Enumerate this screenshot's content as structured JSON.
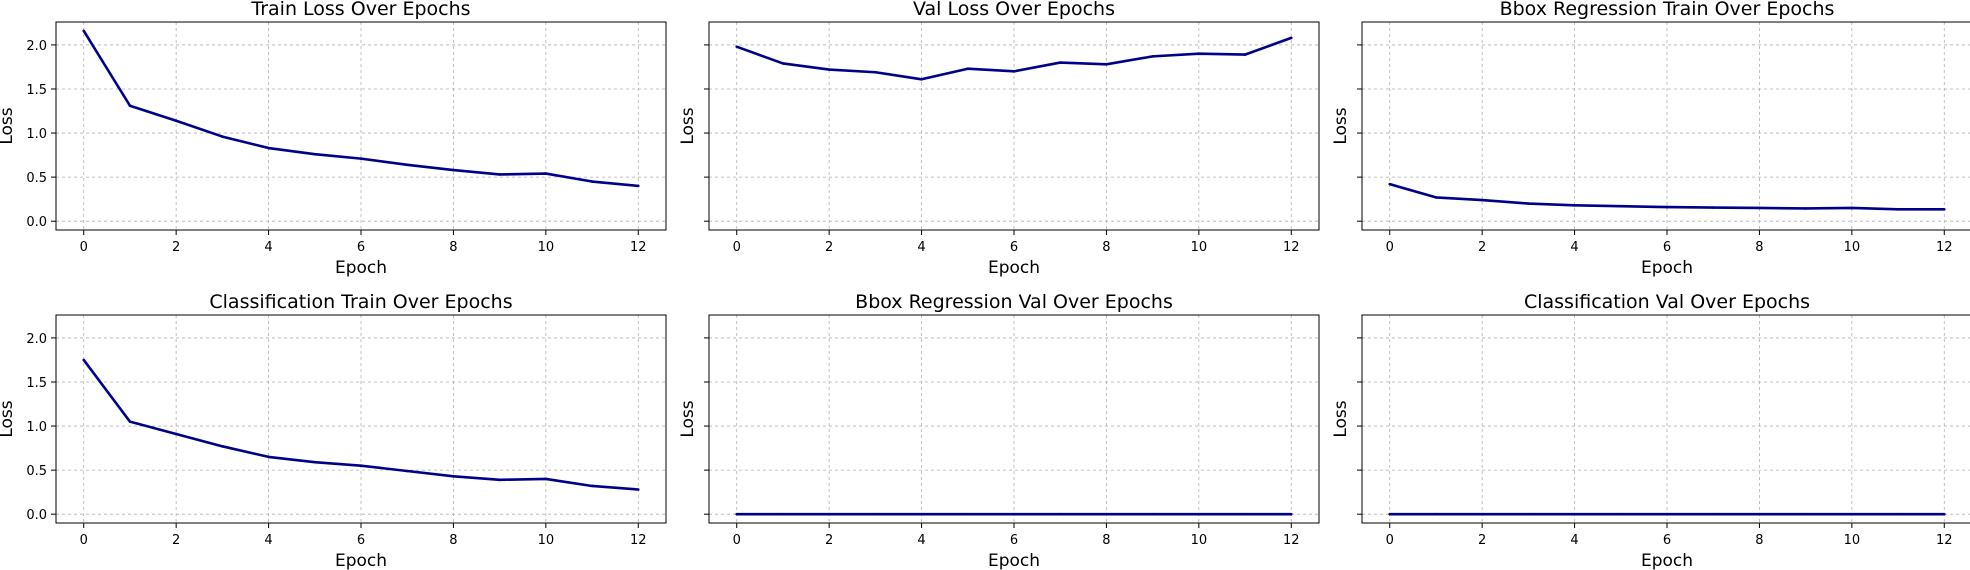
{
  "colors": {
    "line": "#00008b",
    "grid": "#b0b0b0",
    "spine": "#000000",
    "background": "#ffffff"
  },
  "chart_data": [
    {
      "type": "line",
      "title": "Train Loss Over Epochs",
      "xlabel": "Epoch",
      "ylabel": "Loss",
      "x": [
        0,
        1,
        2,
        3,
        4,
        5,
        6,
        7,
        8,
        9,
        10,
        11,
        12
      ],
      "series": [
        {
          "values": [
            2.16,
            1.31,
            1.14,
            0.96,
            0.83,
            0.76,
            0.71,
            0.64,
            0.58,
            0.53,
            0.54,
            0.45,
            0.4
          ]
        }
      ],
      "xlim": [
        -0.6,
        12.6
      ],
      "ylim": [
        -0.1,
        2.26
      ],
      "xticks": [
        "0",
        "2",
        "4",
        "6",
        "8",
        "10",
        "12"
      ],
      "yticks": [
        "0.0",
        "0.5",
        "1.0",
        "1.5",
        "2.0"
      ],
      "grid": true,
      "sharey": false
    },
    {
      "type": "line",
      "title": "Val Loss Over Epochs",
      "xlabel": "Epoch",
      "ylabel": "Loss",
      "x": [
        0,
        1,
        2,
        3,
        4,
        5,
        6,
        7,
        8,
        9,
        10,
        11,
        12
      ],
      "series": [
        {
          "values": [
            1.98,
            1.79,
            1.72,
            1.69,
            1.61,
            1.73,
            1.7,
            1.8,
            1.78,
            1.87,
            1.9,
            1.89,
            2.08
          ]
        }
      ],
      "xlim": [
        -0.6,
        12.6
      ],
      "ylim": [
        -0.1,
        2.26
      ],
      "xticks": [
        "0",
        "2",
        "4",
        "6",
        "8",
        "10",
        "12"
      ],
      "grid": true,
      "sharey": true
    },
    {
      "type": "line",
      "title": "Bbox Regression Train Over Epochs",
      "xlabel": "Epoch",
      "ylabel": "Loss",
      "x": [
        0,
        1,
        2,
        3,
        4,
        5,
        6,
        7,
        8,
        9,
        10,
        11,
        12
      ],
      "series": [
        {
          "values": [
            0.42,
            0.27,
            0.24,
            0.2,
            0.18,
            0.17,
            0.16,
            0.155,
            0.15,
            0.145,
            0.15,
            0.135,
            0.135
          ]
        }
      ],
      "xlim": [
        -0.6,
        12.6
      ],
      "ylim": [
        -0.1,
        2.26
      ],
      "xticks": [
        "0",
        "2",
        "4",
        "6",
        "8",
        "10",
        "12"
      ],
      "grid": true,
      "sharey": true
    },
    {
      "type": "line",
      "title": "Classification Train Over Epochs",
      "xlabel": "Epoch",
      "ylabel": "Loss",
      "x": [
        0,
        1,
        2,
        3,
        4,
        5,
        6,
        7,
        8,
        9,
        10,
        11,
        12
      ],
      "series": [
        {
          "values": [
            1.75,
            1.05,
            0.91,
            0.77,
            0.65,
            0.59,
            0.55,
            0.49,
            0.43,
            0.39,
            0.4,
            0.32,
            0.28
          ]
        }
      ],
      "xlim": [
        -0.6,
        12.6
      ],
      "ylim": [
        -0.1,
        2.26
      ],
      "xticks": [
        "0",
        "2",
        "4",
        "6",
        "8",
        "10",
        "12"
      ],
      "yticks": [
        "0.0",
        "0.5",
        "1.0",
        "1.5",
        "2.0"
      ],
      "grid": true,
      "sharey": false
    },
    {
      "type": "line",
      "title": "Bbox Regression Val Over Epochs",
      "xlabel": "Epoch",
      "ylabel": "Loss",
      "x": [
        0,
        1,
        2,
        3,
        4,
        5,
        6,
        7,
        8,
        9,
        10,
        11,
        12
      ],
      "series": [
        {
          "values": [
            0,
            0,
            0,
            0,
            0,
            0,
            0,
            0,
            0,
            0,
            0,
            0,
            0
          ]
        }
      ],
      "xlim": [
        -0.6,
        12.6
      ],
      "ylim": [
        -0.1,
        2.26
      ],
      "xticks": [
        "0",
        "2",
        "4",
        "6",
        "8",
        "10",
        "12"
      ],
      "grid": true,
      "sharey": true
    },
    {
      "type": "line",
      "title": "Classification Val Over Epochs",
      "xlabel": "Epoch",
      "ylabel": "Loss",
      "x": [
        0,
        1,
        2,
        3,
        4,
        5,
        6,
        7,
        8,
        9,
        10,
        11,
        12
      ],
      "series": [
        {
          "values": [
            0,
            0,
            0,
            0,
            0,
            0,
            0,
            0,
            0,
            0,
            0,
            0,
            0
          ]
        }
      ],
      "xlim": [
        -0.6,
        12.6
      ],
      "ylim": [
        -0.1,
        2.26
      ],
      "xticks": [
        "0",
        "2",
        "4",
        "6",
        "8",
        "10",
        "12"
      ],
      "grid": true,
      "sharey": true
    }
  ]
}
